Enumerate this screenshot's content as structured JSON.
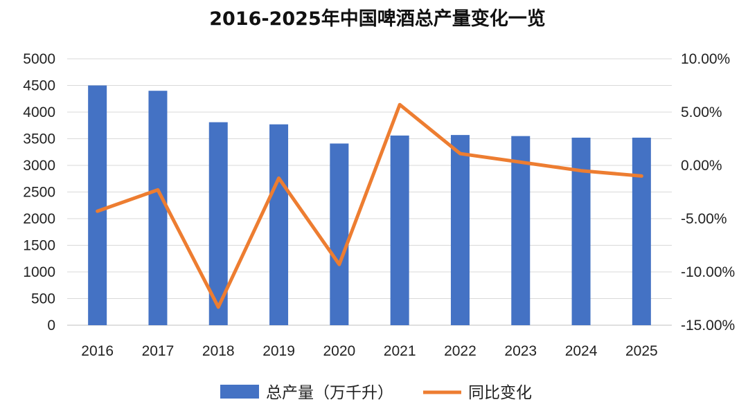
{
  "chart_data": {
    "type": "bar",
    "title": "2016-2025年中国啤酒总产量变化一览",
    "categories": [
      "2016",
      "2017",
      "2018",
      "2019",
      "2020",
      "2021",
      "2022",
      "2023",
      "2024",
      "2025"
    ],
    "series": [
      {
        "name": "总产量（万千升）",
        "type": "bar",
        "axis": "left",
        "color": "#4472C4",
        "values": [
          4500,
          4400,
          3810,
          3770,
          3410,
          3560,
          3570,
          3550,
          3520,
          3520
        ]
      },
      {
        "name": "同比变化",
        "type": "line",
        "axis": "right",
        "color": "#ED7D31",
        "values": [
          -4.3,
          -2.3,
          -13.3,
          -1.2,
          -9.3,
          5.7,
          1.1,
          0.3,
          -0.5,
          -1.0
        ]
      }
    ],
    "y_left": {
      "ylim": [
        0,
        5000
      ],
      "ticks": [
        "0",
        "500",
        "1000",
        "1500",
        "2000",
        "2500",
        "3000",
        "3500",
        "4000",
        "4500",
        "5000"
      ]
    },
    "y_right": {
      "ylim": [
        -15,
        10
      ],
      "ticks": [
        "-15.00%",
        "-10.00%",
        "-5.00%",
        "0.00%",
        "5.00%",
        "10.00%"
      ]
    },
    "grid": true,
    "legend": "bottom"
  }
}
